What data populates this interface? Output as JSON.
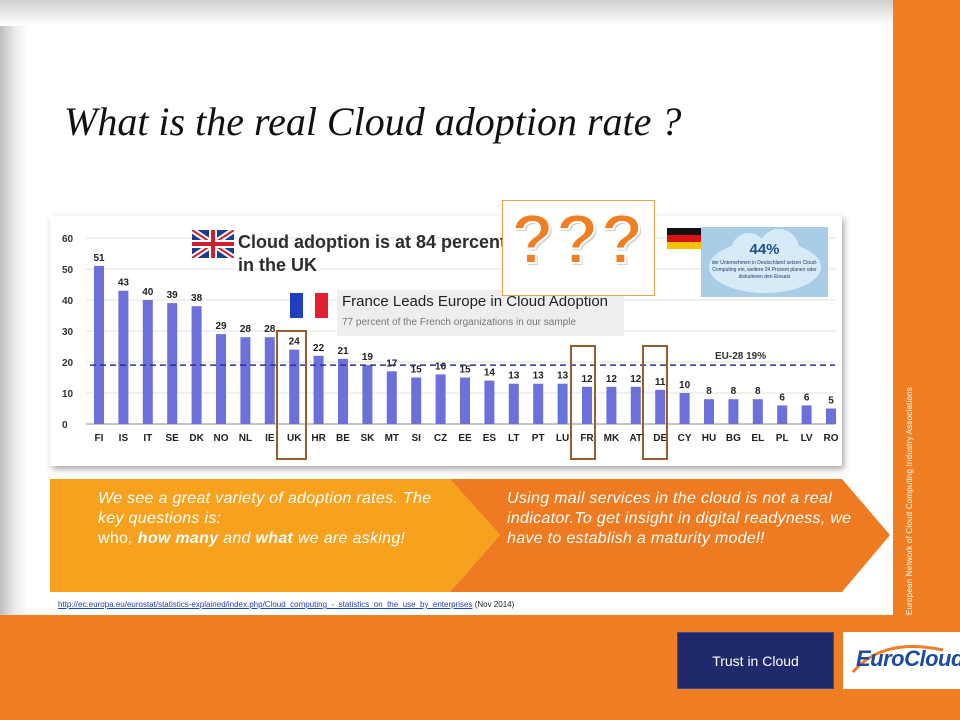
{
  "slide": {
    "title": "What is the real Cloud adoption rate ?",
    "vertical_caption": "European Network of Cloud Computing Industry Associations",
    "trust_button": "Trust in Cloud",
    "logo_text": "EuroCloud",
    "colors": {
      "accent": "#f07f23",
      "navy": "#1f2a6b",
      "bar": "#6b71d8"
    }
  },
  "callouts": {
    "uk_text": "Cloud adoption is at 84 percent in the UK",
    "fr_title": "France Leads Europe in Cloud Adoption",
    "fr_sub": "77 percent of the French organizations in our sample",
    "question_marks": "???",
    "de_percent": "44%",
    "de_text": "der Unternehmen in Deutschland setzen Cloud-Computing ein, weitere 24 Prozent planen oder diskutieren den Einsatz"
  },
  "messages": {
    "left_line1": "We see a great variety of adoption rates. The key questions is:",
    "left_line2_a": "who",
    "left_line2_b": ", ",
    "left_line2_c": "how many",
    "left_line2_d": " and ",
    "left_line2_e": "what",
    "left_line2_f": " we are asking!",
    "right": "Using mail services in the cloud is not a real indicator.To get insight in digital readyness, we have to establish a maturity model!"
  },
  "source": {
    "url": "http://ec.europa.eu/eurostat/statistics-explained/index.php/Cloud_computing_-_statistics_on_the_use_by_enterprises",
    "note": " (Nov 2014)"
  },
  "chart_data": {
    "type": "bar",
    "categories": [
      "FI",
      "IS",
      "IT",
      "SE",
      "DK",
      "NO",
      "NL",
      "IE",
      "UK",
      "HR",
      "BE",
      "SK",
      "MT",
      "SI",
      "CZ",
      "EE",
      "ES",
      "LT",
      "PT",
      "LU",
      "FR",
      "MK",
      "AT",
      "DE",
      "CY",
      "HU",
      "BG",
      "EL",
      "PL",
      "LV",
      "RO"
    ],
    "values": [
      51,
      43,
      40,
      39,
      38,
      29,
      28,
      28,
      24,
      22,
      21,
      19,
      17,
      15,
      16,
      15,
      14,
      13,
      13,
      13,
      12,
      12,
      12,
      11,
      10,
      8,
      8,
      8,
      6,
      6,
      5
    ],
    "labels": [
      "51",
      "43",
      "40",
      "39",
      "38",
      "29",
      "28",
      "28",
      "24",
      "22",
      "21",
      "19",
      "17",
      "15",
      "16",
      "15",
      "14",
      "13",
      "13",
      "13",
      "12",
      "12",
      "12",
      "11",
      "10",
      "8",
      "8",
      "8",
      "6",
      "6",
      "5"
    ],
    "yticks": [
      "0",
      "10",
      "20",
      "30",
      "40",
      "50",
      "60"
    ],
    "ylim": [
      0,
      60
    ],
    "reference_line": {
      "value": 19,
      "label": "EU-28 19%"
    },
    "highlighted": [
      "UK",
      "FR",
      "DE"
    ],
    "grid": true
  }
}
